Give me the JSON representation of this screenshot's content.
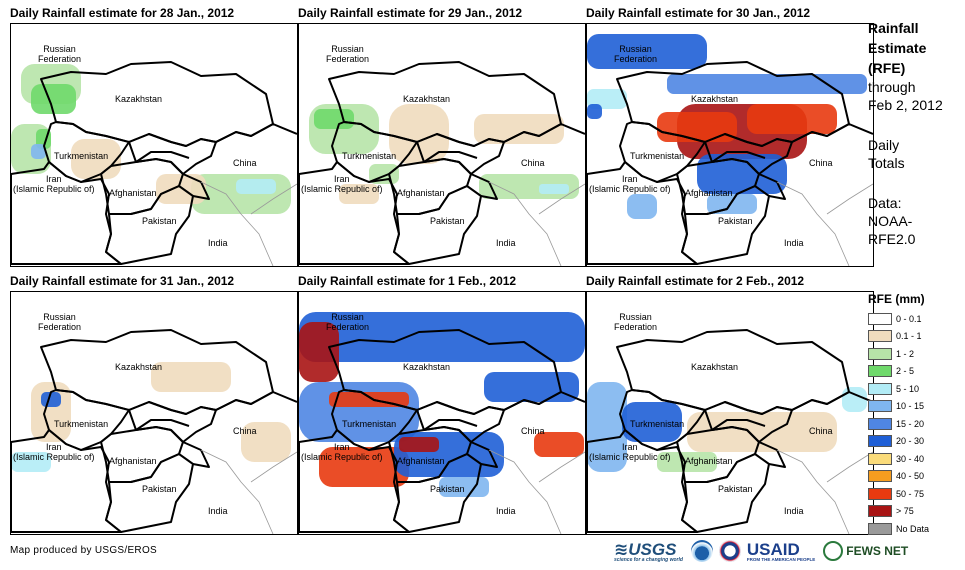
{
  "panels": [
    {
      "title": "Daily Rainfall estimate for 28 Jan., 2012"
    },
    {
      "title": "Daily Rainfall estimate for 29 Jan., 2012"
    },
    {
      "title": "Daily Rainfall estimate for 30 Jan., 2012"
    },
    {
      "title": "Daily Rainfall estimate for 31 Jan., 2012"
    },
    {
      "title": "Daily Rainfall estimate for 1 Feb., 2012"
    },
    {
      "title": "Daily Rainfall estimate for 2 Feb., 2012"
    }
  ],
  "map_labels": {
    "russia_1": "Russian",
    "russia_2": "Federation",
    "kazakhstan": "Kazakhstan",
    "turkmenistan": "Turkmenistan",
    "iran_1": "Iran",
    "iran_2": "(Islamic Republic of)",
    "afghanistan": "Afghanistan",
    "pakistan": "Pakistan",
    "china": "China",
    "india": "India"
  },
  "side_panel": {
    "title_1": "Rainfall",
    "title_2": "Estimate",
    "title_3": "(RFE)",
    "through": "through",
    "date": "Feb 2, 2012",
    "daily": "Daily",
    "totals": "Totals",
    "data_label": "Data:",
    "source_1": "NOAA-",
    "source_2": "RFE2.0"
  },
  "legend": {
    "title": "RFE (mm)",
    "items": [
      {
        "label": "0 - 0.1",
        "color": "#ffffff"
      },
      {
        "label": "0.1 - 1",
        "color": "#f0dcbe"
      },
      {
        "label": "1 - 2",
        "color": "#b7e4a8"
      },
      {
        "label": "2 - 5",
        "color": "#6fd96b"
      },
      {
        "label": "5 - 10",
        "color": "#b2ecf6"
      },
      {
        "label": "10 - 15",
        "color": "#7fb6ef"
      },
      {
        "label": "15 - 20",
        "color": "#4f86e3"
      },
      {
        "label": "20 - 30",
        "color": "#1f5fd6"
      },
      {
        "label": "30 - 40",
        "color": "#fadb7a"
      },
      {
        "label": "40 - 50",
        "color": "#f59d1f"
      },
      {
        "label": "50 - 75",
        "color": "#e83a10"
      },
      {
        "label": "> 75",
        "color": "#a81414"
      },
      {
        "label": "No Data",
        "color": "#9a9a9a"
      }
    ]
  },
  "footer": {
    "credit": "Map produced by USGS/EROS",
    "usgs": "≋USGS",
    "usgs_tagline": "science for a changing world",
    "usaid": "USAID",
    "usaid_tagline": "FROM THE AMERICAN PEOPLE",
    "fews": "FEWS NET"
  }
}
